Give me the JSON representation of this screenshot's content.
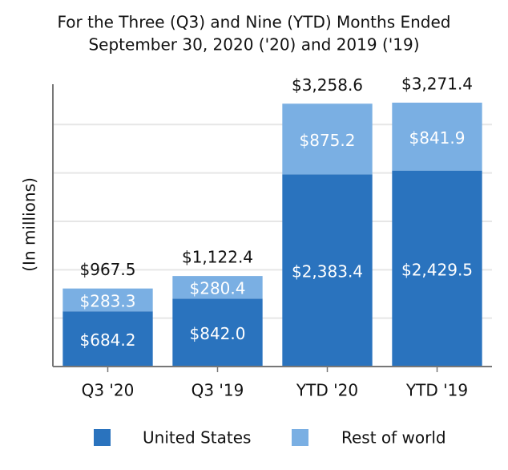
{
  "chart_data": {
    "type": "stacked_bar",
    "title": [
      "For the Three (Q3) and Nine (YTD) Months Ended",
      "September 30, 2020 ('20) and 2019 ('19)"
    ],
    "y_label": "(In millions)",
    "categories": [
      "Q3 '20",
      "Q3 '19",
      "YTD '20",
      "YTD '19"
    ],
    "series": [
      {
        "name": "United States",
        "color": "#2a73be",
        "values": [
          684.2,
          842.0,
          2383.4,
          2429.5
        ],
        "value_labels": [
          "$684.2",
          "$842.0",
          "$2,383.4",
          "$2,429.5"
        ]
      },
      {
        "name": "Rest of world",
        "color": "#7aafe3",
        "values": [
          283.3,
          280.4,
          875.2,
          841.9
        ],
        "value_labels": [
          "$283.3",
          "$280.4",
          "$875.2",
          "$841.9"
        ]
      }
    ],
    "totals": [
      967.5,
      1122.4,
      3258.6,
      3271.4
    ],
    "total_labels": [
      "$967.5",
      "$1,122.4",
      "$3,258.6",
      "$3,271.4"
    ],
    "ylim": [
      0,
      3500
    ],
    "yticks": [
      600,
      1200,
      1800,
      2400,
      3000
    ],
    "grid": true
  }
}
